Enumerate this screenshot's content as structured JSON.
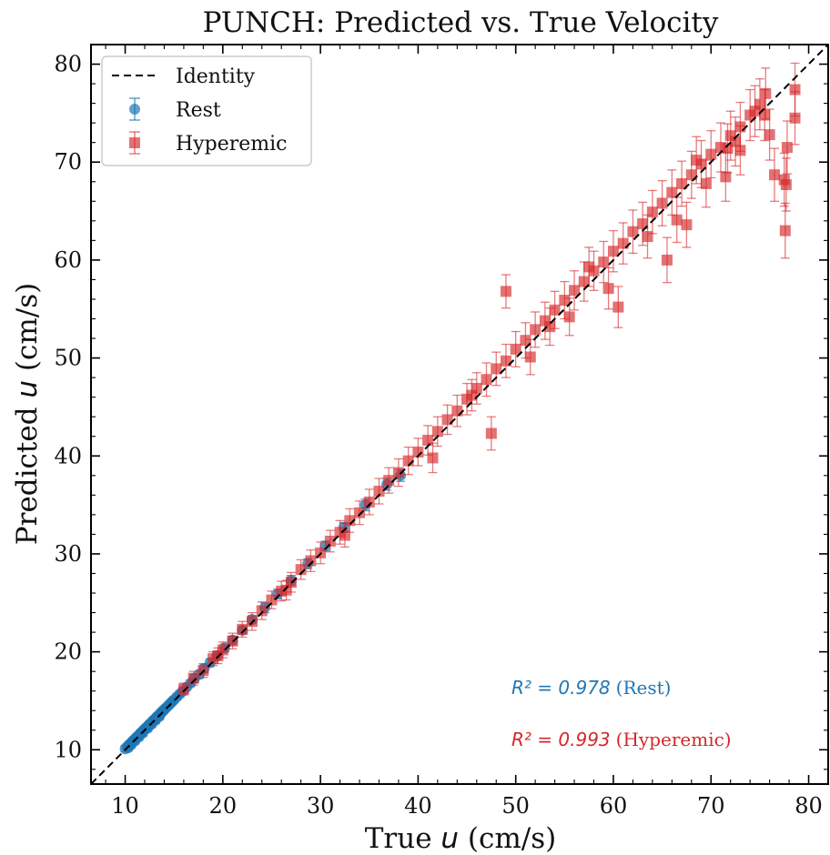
{
  "chart_data": {
    "type": "scatter",
    "title": "PUNCH: Predicted vs. True Velocity",
    "xlabel_prefix": "True ",
    "xlabel_var": "u",
    "xlabel_suffix": " (cm/s)",
    "ylabel_prefix": "Predicted ",
    "ylabel_var": "u",
    "ylabel_suffix": " (cm/s)",
    "xlim": [
      6.5,
      82
    ],
    "ylim": [
      6.5,
      82
    ],
    "xticks": [
      10,
      20,
      30,
      40,
      50,
      60,
      70,
      80
    ],
    "yticks": [
      10,
      20,
      30,
      40,
      50,
      60,
      70,
      80
    ],
    "grid": false,
    "legend_position": "top-left",
    "legend": [
      {
        "label": "Identity",
        "kind": "line",
        "color": "#000000"
      },
      {
        "label": "Rest",
        "kind": "circle",
        "color": "#1f77b4"
      },
      {
        "label": "Hyperemic",
        "kind": "square",
        "color": "#d62728"
      }
    ],
    "identity_line": {
      "from": [
        6.5,
        6.5
      ],
      "to": [
        82,
        82
      ],
      "style": "dashed",
      "color": "#000000"
    },
    "annotations": [
      {
        "math": "R² = 0.978",
        "text": "(Rest)",
        "color": "#1f77b4",
        "x": 49.5,
        "y": 16.0
      },
      {
        "math": "R² = 0.993",
        "text": "(Hyperemic)",
        "color": "#d62728",
        "x": 49.5,
        "y": 10.8
      }
    ],
    "series": [
      {
        "name": "Rest",
        "marker": "circle",
        "color": "#1f77b4",
        "points": [
          [
            10.0,
            10.1,
            0.3
          ],
          [
            10.2,
            10.3,
            0.3
          ],
          [
            10.3,
            10.2,
            0.3
          ],
          [
            10.4,
            10.5,
            0.3
          ],
          [
            10.5,
            10.6,
            0.3
          ],
          [
            10.6,
            10.5,
            0.3
          ],
          [
            10.7,
            10.8,
            0.3
          ],
          [
            10.8,
            10.9,
            0.3
          ],
          [
            10.9,
            11.0,
            0.3
          ],
          [
            11.0,
            10.9,
            0.3
          ],
          [
            11.1,
            11.2,
            0.3
          ],
          [
            11.2,
            11.3,
            0.3
          ],
          [
            11.3,
            11.4,
            0.3
          ],
          [
            11.4,
            11.3,
            0.3
          ],
          [
            11.5,
            11.6,
            0.3
          ],
          [
            11.6,
            11.7,
            0.3
          ],
          [
            11.7,
            11.8,
            0.3
          ],
          [
            11.8,
            11.7,
            0.3
          ],
          [
            11.9,
            12.0,
            0.3
          ],
          [
            12.0,
            12.1,
            0.3
          ],
          [
            12.1,
            12.2,
            0.3
          ],
          [
            12.2,
            12.3,
            0.3
          ],
          [
            12.3,
            12.2,
            0.3
          ],
          [
            12.4,
            12.5,
            0.3
          ],
          [
            12.5,
            12.6,
            0.3
          ],
          [
            12.6,
            12.7,
            0.3
          ],
          [
            12.7,
            12.6,
            0.3
          ],
          [
            12.8,
            12.9,
            0.3
          ],
          [
            12.9,
            13.0,
            0.3
          ],
          [
            13.0,
            13.1,
            0.3
          ],
          [
            13.1,
            13.0,
            0.3
          ],
          [
            13.2,
            13.3,
            0.3
          ],
          [
            13.3,
            13.4,
            0.3
          ],
          [
            13.4,
            13.5,
            0.3
          ],
          [
            13.5,
            13.4,
            0.3
          ],
          [
            13.6,
            13.7,
            0.3
          ],
          [
            13.7,
            13.8,
            0.3
          ],
          [
            13.8,
            13.9,
            0.3
          ],
          [
            13.9,
            14.0,
            0.3
          ],
          [
            14.0,
            14.1,
            0.3
          ],
          [
            14.2,
            14.3,
            0.3
          ],
          [
            14.4,
            14.5,
            0.3
          ],
          [
            14.6,
            14.7,
            0.3
          ],
          [
            14.8,
            14.9,
            0.3
          ],
          [
            15.0,
            15.1,
            0.3
          ],
          [
            15.3,
            15.4,
            0.3
          ],
          [
            15.6,
            15.7,
            0.3
          ],
          [
            15.9,
            16.0,
            0.3
          ],
          [
            16.3,
            16.4,
            0.3
          ],
          [
            16.7,
            16.8,
            0.3
          ],
          [
            17.1,
            17.3,
            0.4
          ],
          [
            17.6,
            17.7,
            0.4
          ],
          [
            18.1,
            18.3,
            0.4
          ],
          [
            18.7,
            18.9,
            0.4
          ],
          [
            19.4,
            19.6,
            0.4
          ],
          [
            20.2,
            20.4,
            0.4
          ],
          [
            21.0,
            21.2,
            0.4
          ],
          [
            22.0,
            22.2,
            0.4
          ],
          [
            23.0,
            23.3,
            0.4
          ],
          [
            24.3,
            24.5,
            0.5
          ],
          [
            25.6,
            25.9,
            0.5
          ],
          [
            27.0,
            27.3,
            0.5
          ],
          [
            28.7,
            29.0,
            0.5
          ],
          [
            30.5,
            30.8,
            0.5
          ],
          [
            32.4,
            32.7,
            0.5
          ],
          [
            34.6,
            35.0,
            0.6
          ],
          [
            36.8,
            37.1,
            0.6
          ],
          [
            38.2,
            38.0,
            0.6
          ]
        ]
      },
      {
        "name": "Hyperemic",
        "marker": "square",
        "color": "#d62728",
        "points": [
          [
            16.0,
            16.2,
            0.6
          ],
          [
            17.0,
            17.3,
            0.7
          ],
          [
            18.0,
            18.1,
            0.7
          ],
          [
            19.0,
            19.3,
            0.7
          ],
          [
            20.0,
            20.2,
            0.8
          ],
          [
            21.0,
            21.1,
            0.8
          ],
          [
            22.0,
            22.3,
            0.8
          ],
          [
            23.0,
            23.1,
            0.9
          ],
          [
            24.0,
            24.2,
            0.9
          ],
          [
            25.0,
            25.3,
            0.9
          ],
          [
            26.0,
            26.2,
            1.0
          ],
          [
            27.0,
            27.1,
            1.0
          ],
          [
            28.0,
            28.4,
            1.0
          ],
          [
            29.0,
            29.3,
            1.1
          ],
          [
            30.0,
            30.1,
            1.1
          ],
          [
            31.0,
            31.3,
            1.1
          ],
          [
            32.0,
            32.2,
            1.2
          ],
          [
            33.0,
            33.4,
            1.2
          ],
          [
            34.0,
            34.2,
            1.2
          ],
          [
            35.0,
            35.3,
            1.3
          ],
          [
            36.0,
            36.4,
            1.3
          ],
          [
            37.0,
            37.5,
            1.3
          ],
          [
            38.0,
            38.3,
            1.4
          ],
          [
            39.0,
            39.5,
            1.4
          ],
          [
            40.0,
            40.4,
            1.4
          ],
          [
            41.0,
            41.6,
            1.5
          ],
          [
            42.0,
            42.5,
            1.5
          ],
          [
            43.0,
            43.7,
            1.5
          ],
          [
            44.0,
            44.6,
            1.6
          ],
          [
            45.0,
            45.8,
            1.6
          ],
          [
            46.0,
            46.9,
            1.6
          ],
          [
            47.0,
            47.8,
            1.7
          ],
          [
            48.0,
            48.9,
            1.7
          ],
          [
            49.0,
            49.7,
            1.7
          ],
          [
            50.0,
            50.9,
            1.8
          ],
          [
            51.0,
            51.8,
            1.8
          ],
          [
            52.0,
            52.9,
            1.8
          ],
          [
            53.0,
            53.8,
            1.9
          ],
          [
            54.0,
            54.9,
            1.9
          ],
          [
            55.0,
            55.9,
            1.9
          ],
          [
            56.0,
            56.9,
            2.0
          ],
          [
            57.0,
            57.8,
            2.0
          ],
          [
            58.0,
            58.9,
            2.0
          ],
          [
            59.0,
            59.8,
            2.1
          ],
          [
            60.0,
            60.9,
            2.1
          ],
          [
            61.0,
            61.7,
            2.1
          ],
          [
            62.0,
            62.9,
            2.2
          ],
          [
            63.0,
            63.7,
            2.2
          ],
          [
            64.0,
            64.9,
            2.2
          ],
          [
            65.0,
            65.8,
            2.3
          ],
          [
            66.0,
            66.9,
            2.3
          ],
          [
            67.0,
            67.8,
            2.3
          ],
          [
            68.0,
            68.7,
            2.4
          ],
          [
            69.0,
            69.8,
            2.4
          ],
          [
            70.0,
            70.8,
            2.4
          ],
          [
            71.0,
            71.5,
            2.5
          ],
          [
            72.0,
            72.7,
            2.5
          ],
          [
            73.0,
            73.6,
            2.5
          ],
          [
            74.0,
            74.8,
            2.6
          ],
          [
            75.0,
            75.9,
            2.6
          ],
          [
            75.6,
            77.0,
            2.6
          ],
          [
            78.6,
            77.4,
            2.7
          ],
          [
            19.5,
            19.6,
            0.8
          ],
          [
            26.5,
            26.3,
            1.0
          ],
          [
            32.5,
            31.9,
            1.2
          ],
          [
            41.5,
            39.8,
            1.5
          ],
          [
            45.5,
            46.2,
            1.6
          ],
          [
            47.5,
            42.3,
            1.7
          ],
          [
            49.0,
            56.8,
            1.7
          ],
          [
            51.5,
            50.1,
            1.8
          ],
          [
            53.5,
            53.2,
            1.9
          ],
          [
            55.5,
            54.2,
            1.9
          ],
          [
            57.5,
            59.3,
            2.0
          ],
          [
            59.5,
            57.1,
            2.1
          ],
          [
            60.5,
            55.2,
            2.1
          ],
          [
            63.5,
            62.4,
            2.2
          ],
          [
            65.5,
            60.0,
            2.3
          ],
          [
            66.5,
            64.1,
            2.3
          ],
          [
            67.5,
            63.6,
            2.3
          ],
          [
            68.5,
            70.2,
            2.4
          ],
          [
            69.5,
            67.8,
            2.4
          ],
          [
            71.5,
            68.5,
            2.5
          ],
          [
            71.7,
            71.4,
            2.5
          ],
          [
            72.5,
            72.1,
            2.5
          ],
          [
            73.0,
            71.2,
            2.5
          ],
          [
            74.5,
            75.2,
            2.6
          ],
          [
            75.5,
            74.8,
            2.6
          ],
          [
            76.0,
            72.8,
            2.6
          ],
          [
            76.5,
            68.7,
            2.7
          ],
          [
            77.5,
            68.2,
            2.7
          ],
          [
            77.7,
            67.7,
            2.7
          ],
          [
            77.8,
            71.5,
            2.7
          ],
          [
            77.6,
            63.0,
            2.8
          ],
          [
            78.6,
            74.5,
            2.7
          ]
        ]
      }
    ]
  }
}
